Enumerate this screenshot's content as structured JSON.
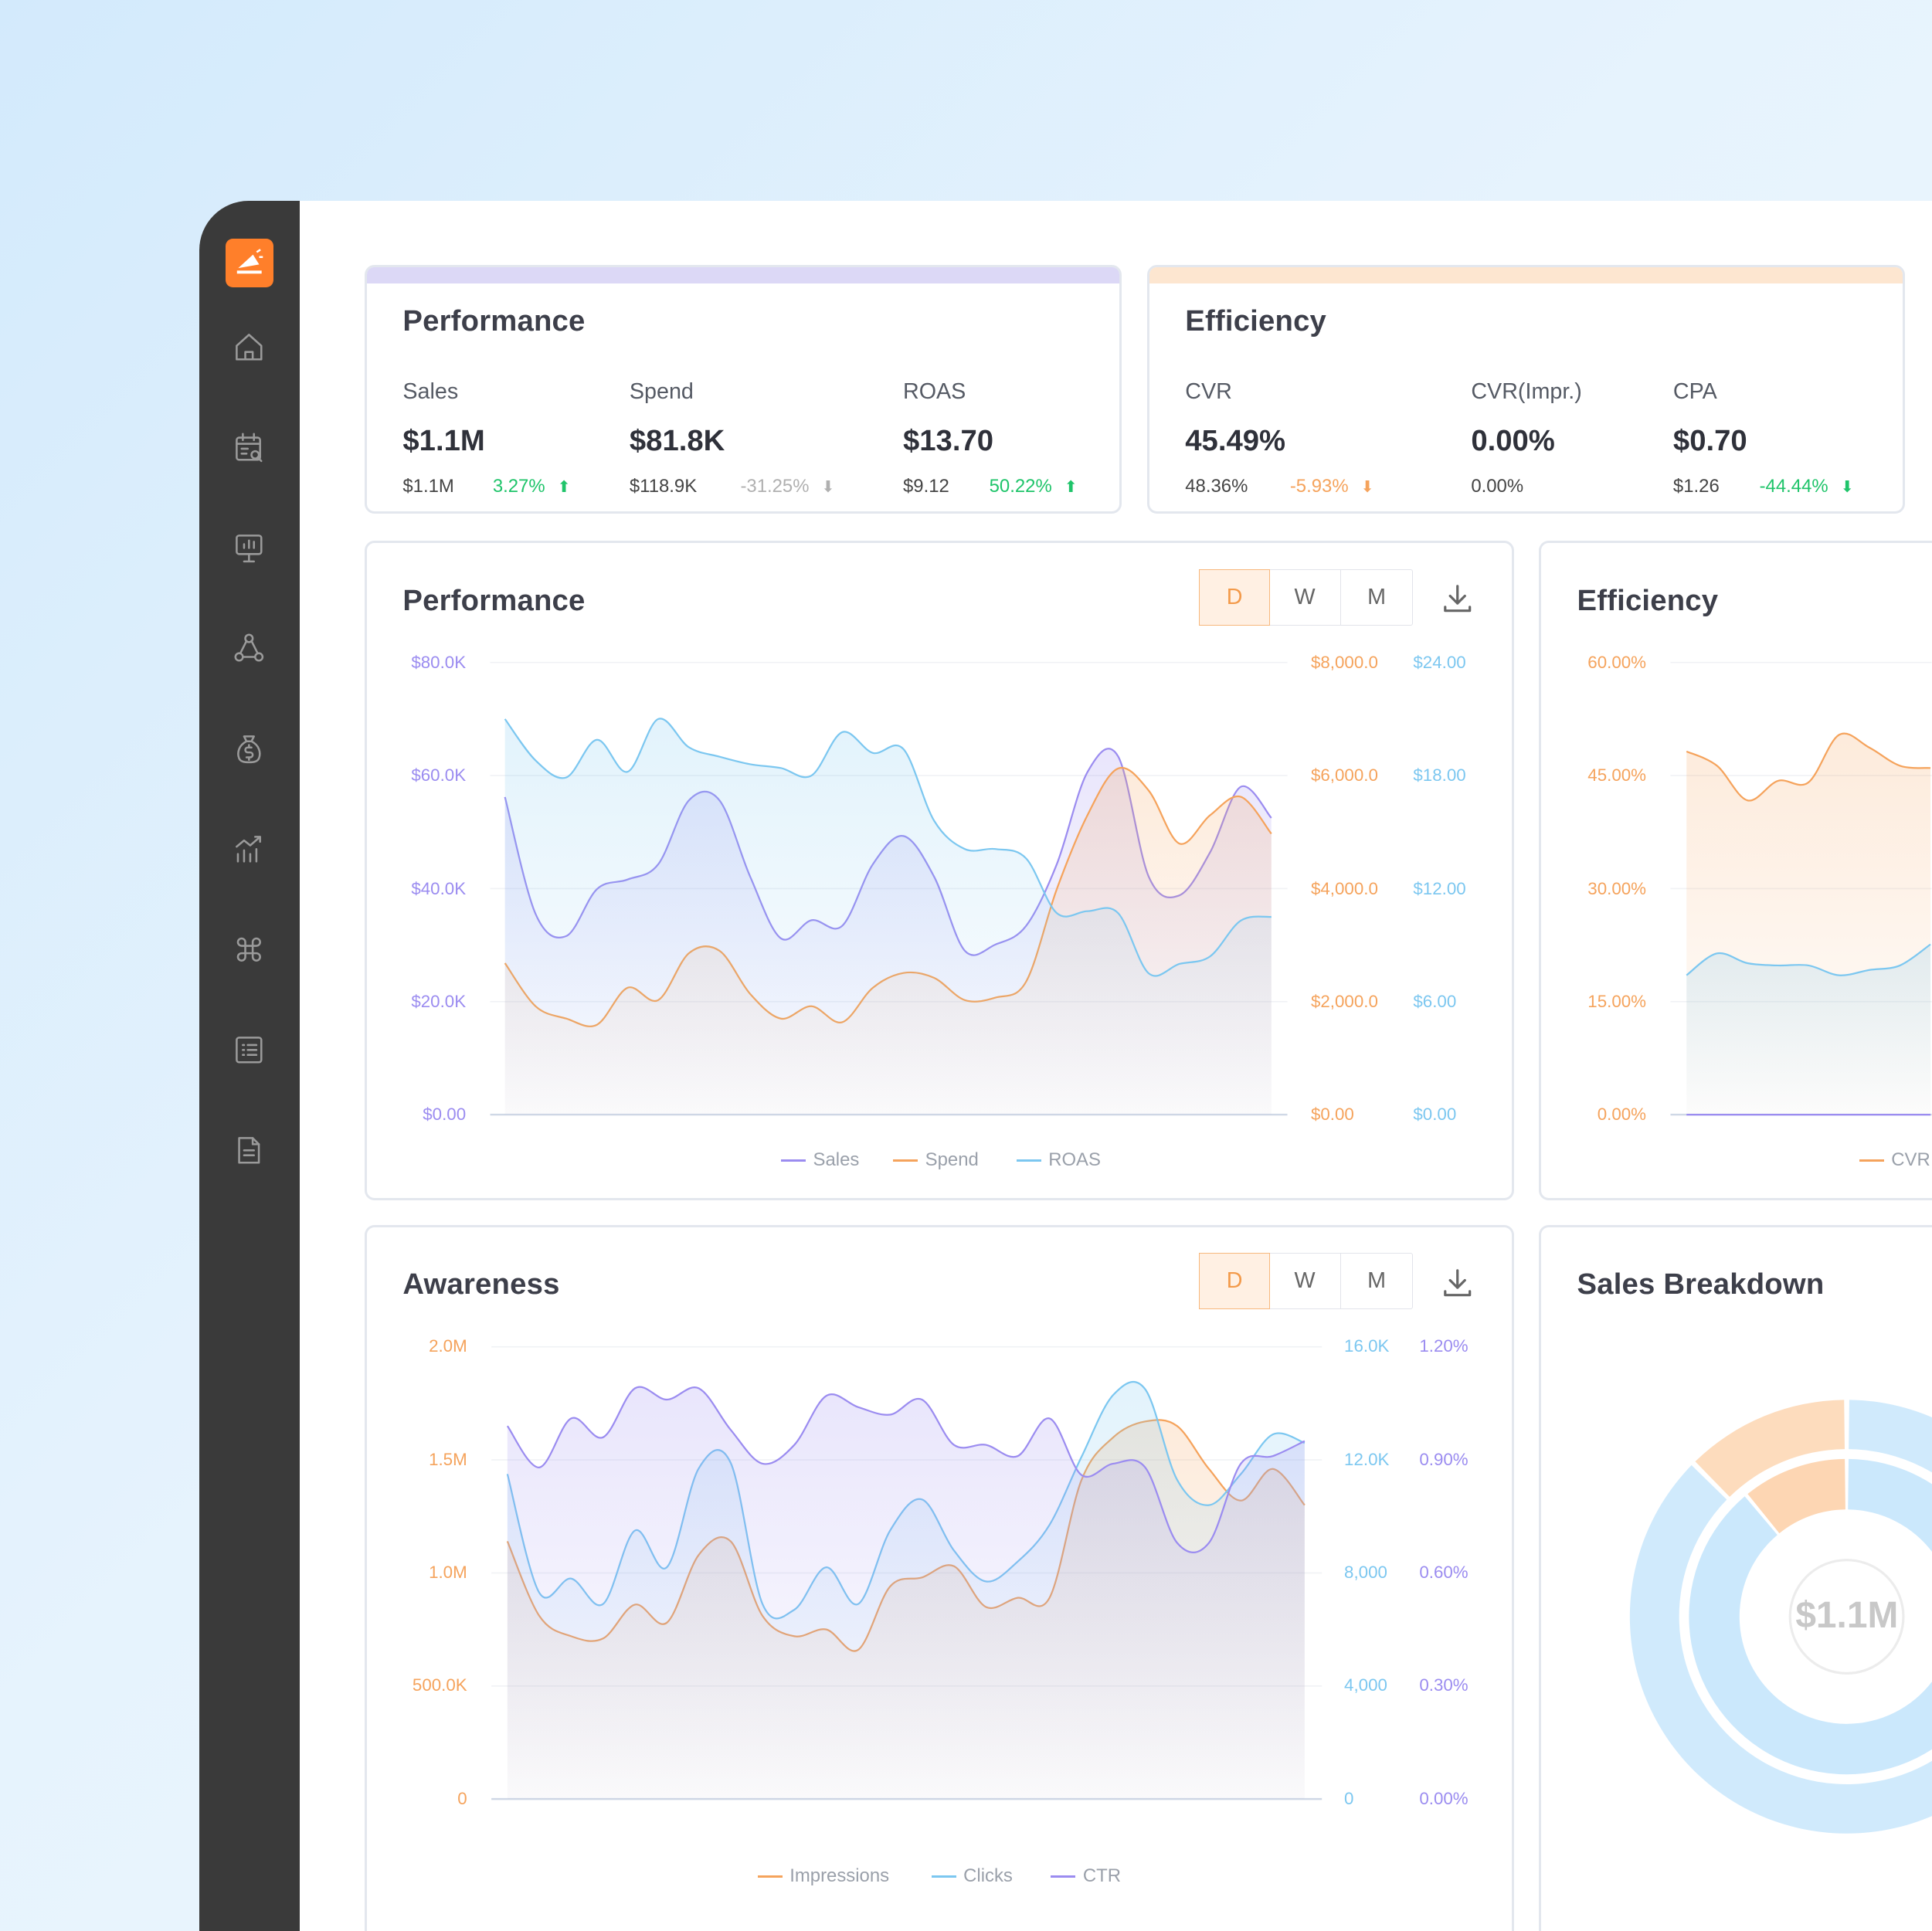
{
  "colors": {
    "accent": "#ff7f2a",
    "sales": "#9b8cf0",
    "spend": "#f5a35c",
    "roas": "#7cc7f0",
    "up": "#1fc46a",
    "down_neutral": "#b0b0b0",
    "down_warn": "#f5a35c"
  },
  "sidebar": {
    "items": [
      {
        "icon": "home-icon"
      },
      {
        "icon": "calendar-search-icon"
      },
      {
        "icon": "presentation-chart-icon"
      },
      {
        "icon": "network-icon"
      },
      {
        "icon": "money-bag-icon"
      },
      {
        "icon": "growth-chart-icon"
      },
      {
        "icon": "command-icon"
      },
      {
        "icon": "list-icon"
      },
      {
        "icon": "document-icon"
      }
    ]
  },
  "kpi_performance": {
    "title": "Performance",
    "metrics": [
      {
        "label": "Sales",
        "value": "$1.1M",
        "previous": "$1.1M",
        "delta": "3.27%",
        "trend": "up"
      },
      {
        "label": "Spend",
        "value": "$81.8K",
        "previous": "$118.9K",
        "delta": "-31.25%",
        "trend": "down"
      },
      {
        "label": "ROAS",
        "value": "$13.70",
        "previous": "$9.12",
        "delta": "50.22%",
        "trend": "up"
      }
    ]
  },
  "kpi_efficiency": {
    "title": "Efficiency",
    "metrics": [
      {
        "label": "CVR",
        "value": "45.49%",
        "previous": "48.36%",
        "delta": "-5.93%",
        "trend": "down"
      },
      {
        "label": "CVR(Impr.)",
        "value": "0.00%",
        "previous": "0.00%"
      },
      {
        "label": "CPA",
        "value": "$0.70",
        "previous": "$1.26",
        "delta": "-44.44%",
        "trend": "down"
      }
    ]
  },
  "toggle": {
    "options": [
      "D",
      "W",
      "M"
    ],
    "selected": "D"
  },
  "chart_data": [
    {
      "type": "area",
      "title": "Performance",
      "axes": {
        "left": {
          "ticks": [
            "$80.0K",
            "$60.0K",
            "$40.0K",
            "$20.0K",
            "$0.00"
          ],
          "ylim": [
            0,
            80000
          ]
        },
        "right1": {
          "ticks": [
            "$8,000.0",
            "$6,000.0",
            "$4,000.0",
            "$2,000.0",
            "$0.00"
          ],
          "ylim": [
            0,
            8000
          ]
        },
        "right2": {
          "ticks": [
            "$24.00",
            "$18.00",
            "$12.00",
            "$6.00",
            "$0.00"
          ],
          "ylim": [
            0,
            24
          ]
        }
      },
      "legend": "bottom",
      "series": [
        {
          "name": "Sales",
          "axis": "left",
          "color": "#9b8cf0",
          "values": [
            56200,
            35500,
            31600,
            39900,
            41600,
            44300,
            55600,
            55600,
            42100,
            31200,
            34400,
            33400,
            44300,
            49300,
            42100,
            29000,
            30100,
            33400,
            44300,
            60600,
            63400,
            42100,
            38800,
            46400,
            58000,
            52500
          ]
        },
        {
          "name": "Spend",
          "axis": "right1",
          "color": "#f5a35c",
          "values": [
            2681,
            1918,
            1700,
            1591,
            2245,
            2027,
            2856,
            2899,
            2136,
            1700,
            1918,
            1635,
            2245,
            2507,
            2420,
            2027,
            2071,
            2354,
            3989,
            5297,
            6125,
            5733,
            4796,
            5297,
            5624,
            4970
          ]
        },
        {
          "name": "ROAS",
          "axis": "right2",
          "color": "#7cc7f0",
          "values": [
            21.0,
            18.8,
            17.9,
            19.9,
            18.2,
            21.0,
            19.5,
            19.0,
            18.6,
            18.4,
            18.0,
            20.3,
            19.2,
            19.4,
            15.6,
            14.1,
            14.1,
            13.6,
            10.7,
            10.8,
            10.7,
            7.5,
            8.0,
            8.4,
            10.3,
            10.5
          ]
        }
      ]
    },
    {
      "type": "area",
      "title": "Efficiency",
      "axes": {
        "left": {
          "ticks": [
            "60.00%",
            "45.00%",
            "30.00%",
            "15.00%",
            "0.00%"
          ],
          "ylim": [
            0,
            60
          ]
        }
      },
      "legend": "bottom",
      "series": [
        {
          "name": "CVR",
          "axis": "left",
          "color": "#f5a35c",
          "values": [
            48.2,
            46.3,
            41.7,
            44.3,
            44.1,
            50.4,
            48.7,
            46.3,
            46.0
          ]
        },
        {
          "name": "",
          "axis": "left",
          "color": "#7cc7f0",
          "values": [
            18.5,
            21.4,
            20.1,
            19.8,
            19.8,
            18.5,
            19.2,
            19.8,
            22.6
          ]
        },
        {
          "name": "",
          "axis": "left",
          "color": "#9b8cf0",
          "values": [
            0,
            0,
            0,
            0,
            0,
            0,
            0,
            0,
            0
          ]
        }
      ]
    },
    {
      "type": "area",
      "title": "Awareness",
      "axes": {
        "left": {
          "ticks": [
            "2.0M",
            "1.5M",
            "1.0M",
            "500.0K",
            "0"
          ],
          "ylim": [
            0,
            2000000
          ]
        },
        "right1": {
          "ticks": [
            "16.0K",
            "12.0K",
            "8,000",
            "4,000",
            "0"
          ],
          "ylim": [
            0,
            16000
          ]
        },
        "right2": {
          "ticks": [
            "1.20%",
            "0.90%",
            "0.60%",
            "0.30%",
            "0.00%"
          ],
          "ylim": [
            0,
            1.2
          ]
        }
      },
      "legend": "bottom",
      "series": [
        {
          "name": "Impressions",
          "axis": "left",
          "color": "#f5a35c",
          "values": [
            1140000,
            810000,
            720000,
            710000,
            860000,
            780000,
            1080000,
            1140000,
            810000,
            720000,
            750000,
            660000,
            940000,
            980000,
            1030000,
            850000,
            890000,
            890000,
            1410000,
            1600000,
            1670000,
            1650000,
            1460000,
            1320000,
            1460000,
            1300000
          ]
        },
        {
          "name": "Clicks",
          "axis": "right1",
          "color": "#7cc7f0",
          "values": [
            11500,
            7300,
            7800,
            6900,
            9500,
            8200,
            11700,
            11900,
            6900,
            6700,
            8200,
            6900,
            9500,
            10600,
            8800,
            7700,
            8400,
            9700,
            12100,
            14300,
            14500,
            11300,
            10400,
            11500,
            12900,
            12600
          ]
        },
        {
          "name": "CTR",
          "axis": "right2",
          "color": "#9b8cf0",
          "values": [
            0.99,
            0.88,
            1.01,
            0.96,
            1.09,
            1.06,
            1.09,
            0.98,
            0.89,
            0.94,
            1.07,
            1.04,
            1.02,
            1.06,
            0.94,
            0.94,
            0.91,
            1.01,
            0.86,
            0.89,
            0.88,
            0.68,
            0.68,
            0.89,
            0.91,
            0.95
          ]
        }
      ]
    },
    {
      "type": "pie",
      "title": "Sales Breakdown",
      "center_label": "$1.1M",
      "rings": [
        {
          "name": "outer",
          "segments": [
            {
              "share": 0.875,
              "color": "#c8e6fb"
            },
            {
              "share": 0.125,
              "color": "#fddcbd"
            }
          ]
        },
        {
          "name": "inner",
          "segments": [
            {
              "share": 0.89,
              "color": "#c2e4fb"
            },
            {
              "share": 0.11,
              "color": "#fdd6b3"
            }
          ]
        }
      ]
    }
  ]
}
